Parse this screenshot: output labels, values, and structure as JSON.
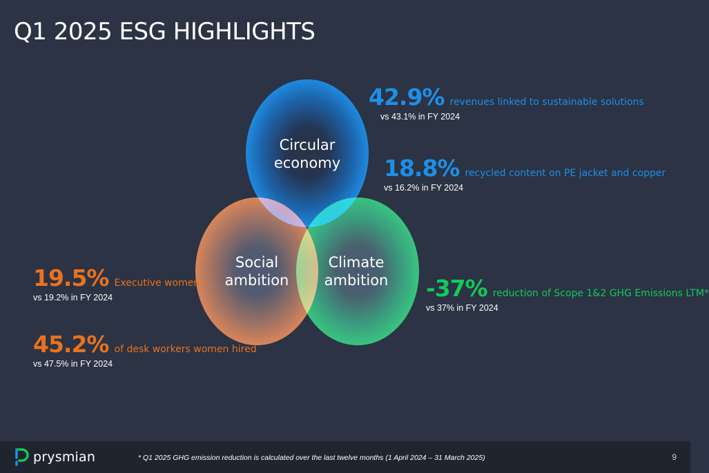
{
  "title": "Q1 2025 ESG HIGHLIGHTS",
  "colors": {
    "background": "#2b3344",
    "circular": "#1e8fe8",
    "social": "#e8721f",
    "climate": "#12c95a",
    "footer": "#20242f"
  },
  "circles": {
    "circular": {
      "label_line1": "Circular",
      "label_line2": "economy"
    },
    "social": {
      "label_line1": "Social",
      "label_line2": "ambition"
    },
    "climate": {
      "label_line1": "Climate",
      "label_line2": "ambition"
    }
  },
  "metrics": {
    "revenues": {
      "value": "42.9%",
      "desc": "revenues linked to sustainable solutions",
      "compare": "vs 43.1% in FY 2024"
    },
    "recycled": {
      "value": "18.8%",
      "desc": "recycled content on PE jacket and copper",
      "compare": "vs 16.2% in FY 2024"
    },
    "emissions": {
      "value": "-37%",
      "desc": "reduction of Scope 1&2 GHG Emissions LTM*",
      "compare": "vs 37% in FY 2024"
    },
    "executive": {
      "value": "19.5%",
      "desc": "Executive women",
      "compare": "vs 19.2% in FY 2024"
    },
    "desk": {
      "value": "45.2%",
      "desc": "of desk workers women hired",
      "compare": "vs 47.5% in FY 2024"
    }
  },
  "footer": {
    "logo_text": "prysmian",
    "footnote": "* Q1 2025 GHG emission reduction is calculated over the last twelve months (1 April 2024 – 31 March 2025)",
    "page_number": "9"
  }
}
